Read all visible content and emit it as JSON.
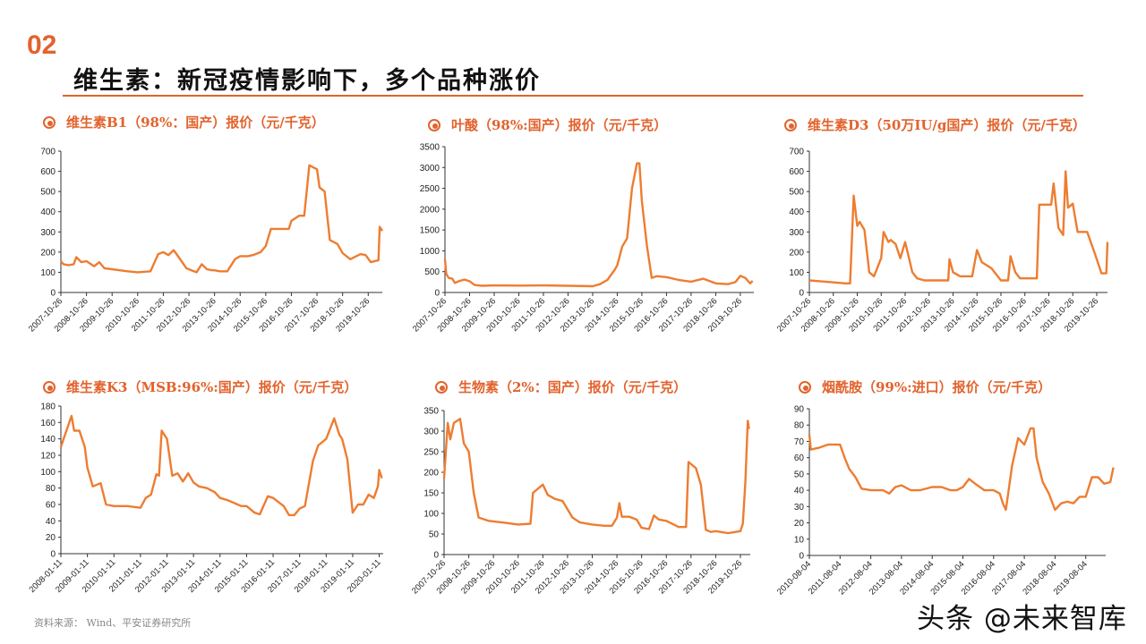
{
  "header": {
    "section_number": "02",
    "title": "维生素：新冠疫情影响下，多个品种涨价"
  },
  "footer": {
    "source": "资料来源： Wind、平安证券研究所",
    "watermark": "头条 @未来智库"
  },
  "colors": {
    "accent": "#e2632d",
    "line": "#ed7d31",
    "axis": "#333333"
  },
  "chart_data": [
    {
      "id": "b1",
      "type": "line",
      "title": "维生素B1（98%：国产）报价（元/千克）",
      "xlabel": "",
      "ylabel": "元/千克",
      "ylim": [
        0,
        700
      ],
      "yticks": [
        0,
        100,
        200,
        300,
        400,
        500,
        600,
        700
      ],
      "xticks": [
        "2007-10-26",
        "2008-10-26",
        "2009-10-26",
        "2010-10-26",
        "2011-10-26",
        "2012-10-26",
        "2013-10-26",
        "2014-10-26",
        "2015-10-26",
        "2016-10-26",
        "2017-10-26",
        "2018-10-26",
        "2019-10-26"
      ],
      "grid": false,
      "x": [
        0,
        0.1,
        0.3,
        0.5,
        0.6,
        0.8,
        1.0,
        1.3,
        1.5,
        1.7,
        2.0,
        2.3,
        2.6,
        3.0,
        3.5,
        3.8,
        4.0,
        4.2,
        4.4,
        4.6,
        4.9,
        5.1,
        5.3,
        5.5,
        5.7,
        5.9,
        6.0,
        6.2,
        6.5,
        6.8,
        7.0,
        7.3,
        7.5,
        7.8,
        8.0,
        8.2,
        8.6,
        8.9,
        9.0,
        9.3,
        9.5,
        9.7,
        10.0,
        10.1,
        10.3,
        10.5,
        10.8,
        11.0,
        11.3,
        11.7,
        11.9,
        12.1,
        12.4,
        12.45,
        12.55
      ],
      "values": [
        155,
        140,
        135,
        140,
        175,
        150,
        155,
        130,
        150,
        120,
        115,
        110,
        105,
        100,
        105,
        190,
        200,
        185,
        210,
        175,
        120,
        110,
        100,
        140,
        115,
        110,
        110,
        105,
        105,
        165,
        180,
        180,
        185,
        200,
        230,
        315,
        315,
        315,
        355,
        380,
        380,
        630,
        610,
        520,
        500,
        260,
        240,
        195,
        165,
        190,
        185,
        150,
        160,
        325,
        305
      ]
    },
    {
      "id": "folic_acid",
      "type": "line",
      "title": "叶酸（98%:国产）报价（元/千克）",
      "xlabel": "",
      "ylabel": "元/千克",
      "ylim": [
        0,
        3500
      ],
      "yticks": [
        0,
        500,
        1000,
        1500,
        2000,
        2500,
        3000,
        3500
      ],
      "xticks": [
        "2007-10-26",
        "2008-10-26",
        "2009-10-26",
        "2010-10-26",
        "2011-10-26",
        "2012-10-26",
        "2013-10-26",
        "2014-10-26",
        "2015-10-26",
        "2016-10-26",
        "2017-10-26",
        "2018-10-26",
        "2019-10-26"
      ],
      "grid": false,
      "x": [
        0,
        0.05,
        0.15,
        0.3,
        0.4,
        0.6,
        0.8,
        1.0,
        1.2,
        1.5,
        2.0,
        3.0,
        4.0,
        5.0,
        6.0,
        6.3,
        6.6,
        6.9,
        7.0,
        7.2,
        7.4,
        7.6,
        7.8,
        7.9,
        8.0,
        8.2,
        8.4,
        8.6,
        9.0,
        9.5,
        10.0,
        10.5,
        11.0,
        11.5,
        11.8,
        12.0,
        12.2,
        12.4,
        12.5
      ],
      "values": [
        800,
        450,
        350,
        330,
        230,
        280,
        310,
        270,
        180,
        160,
        170,
        165,
        170,
        160,
        150,
        200,
        300,
        550,
        650,
        1100,
        1300,
        2500,
        3100,
        3100,
        2200,
        1150,
        350,
        390,
        370,
        300,
        260,
        330,
        220,
        200,
        250,
        400,
        350,
        220,
        280
      ]
    },
    {
      "id": "d3",
      "type": "line",
      "title": "维生素D3（50万IU/g国产）报价（元/千克）",
      "xlabel": "",
      "ylabel": "元/千克",
      "ylim": [
        0,
        700
      ],
      "yticks": [
        0,
        100,
        200,
        300,
        400,
        500,
        600,
        700
      ],
      "xticks": [
        "2007-10-26",
        "2008-10-26",
        "2009-10-26",
        "2010-10-26",
        "2011-10-26",
        "2012-10-26",
        "2013-10-26",
        "2014-10-26",
        "2015-10-26",
        "2016-10-26",
        "2017-10-26",
        "2018-10-26",
        "2019-10-26"
      ],
      "grid": false,
      "x": [
        0,
        0.5,
        1.0,
        1.5,
        1.7,
        1.85,
        2.0,
        2.1,
        2.3,
        2.5,
        2.7,
        3.0,
        3.1,
        3.3,
        3.4,
        3.6,
        3.8,
        4.0,
        4.1,
        4.3,
        4.5,
        4.8,
        5.2,
        5.8,
        5.85,
        6.0,
        6.3,
        6.8,
        7.0,
        7.2,
        7.6,
        8.0,
        8.3,
        8.4,
        8.6,
        8.8,
        9.5,
        9.6,
        10.1,
        10.2,
        10.4,
        10.6,
        10.7,
        10.8,
        11.0,
        11.2,
        11.6,
        11.9,
        12.2,
        12.4,
        12.45
      ],
      "values": [
        60,
        55,
        50,
        45,
        45,
        480,
        330,
        350,
        310,
        100,
        80,
        170,
        300,
        250,
        260,
        240,
        170,
        250,
        200,
        100,
        70,
        60,
        60,
        60,
        165,
        100,
        80,
        80,
        210,
        150,
        120,
        60,
        60,
        180,
        100,
        70,
        70,
        435,
        435,
        540,
        320,
        285,
        600,
        420,
        440,
        300,
        300,
        200,
        95,
        95,
        250
      ]
    },
    {
      "id": "k3",
      "type": "line",
      "title": "维生素K3（MSB:96%:国产）报价（元/千克）",
      "xlabel": "",
      "ylabel": "元/千克",
      "ylim": [
        0,
        180
      ],
      "yticks": [
        0,
        20,
        40,
        60,
        80,
        100,
        120,
        140,
        160,
        180
      ],
      "xticks": [
        "2008-01-11",
        "2009-01-11",
        "2010-01-11",
        "2011-01-11",
        "2012-01-11",
        "2013-01-11",
        "2014-01-11",
        "2015-01-11",
        "2016-01-11",
        "2017-01-11",
        "2018-01-11",
        "2019-01-11",
        "2020-01-11"
      ],
      "grid": false,
      "x": [
        0,
        0.1,
        0.4,
        0.5,
        0.7,
        0.9,
        1.0,
        1.2,
        1.5,
        1.7,
        2.0,
        2.5,
        3.0,
        3.2,
        3.4,
        3.6,
        3.7,
        3.8,
        4.0,
        4.2,
        4.4,
        4.6,
        4.8,
        5.0,
        5.2,
        5.5,
        5.8,
        6.0,
        6.3,
        6.8,
        7.0,
        7.3,
        7.5,
        7.8,
        8.0,
        8.4,
        8.6,
        8.8,
        9.0,
        9.2,
        9.5,
        9.7,
        10.0,
        10.3,
        10.5,
        10.6,
        10.8,
        11.0,
        11.2,
        11.4,
        11.6,
        11.8,
        11.95,
        12.0,
        12.1
      ],
      "values": [
        130,
        140,
        168,
        150,
        150,
        130,
        105,
        82,
        86,
        60,
        58,
        58,
        56,
        68,
        72,
        97,
        95,
        150,
        140,
        95,
        98,
        88,
        98,
        87,
        82,
        80,
        75,
        68,
        65,
        58,
        58,
        50,
        48,
        70,
        68,
        58,
        47,
        47,
        55,
        58,
        113,
        132,
        140,
        165,
        145,
        140,
        115,
        50,
        60,
        60,
        72,
        68,
        82,
        102,
        92
      ]
    },
    {
      "id": "biotin",
      "type": "line",
      "title": "生物素（2%：国产）报价（元/千克）",
      "xlabel": "",
      "ylabel": "元/千克",
      "ylim": [
        0,
        350
      ],
      "yticks": [
        0,
        50,
        100,
        150,
        200,
        250,
        300,
        350
      ],
      "xticks": [
        "2007-10-26",
        "2008-10-26",
        "2009-10-26",
        "2010-10-26",
        "2011-10-26",
        "2012-10-26",
        "2013-10-26",
        "2014-10-26",
        "2015-10-26",
        "2016-10-26",
        "2017-10-26",
        "2018-10-26",
        "2019-10-26"
      ],
      "grid": false,
      "x": [
        0,
        0.15,
        0.25,
        0.4,
        0.65,
        0.8,
        1.0,
        1.2,
        1.4,
        1.8,
        2.5,
        3.0,
        3.5,
        3.6,
        4.0,
        4.2,
        4.5,
        4.8,
        5.2,
        5.5,
        6.0,
        6.5,
        6.8,
        7.0,
        7.1,
        7.2,
        7.5,
        7.8,
        8.0,
        8.3,
        8.5,
        8.7,
        9.0,
        9.5,
        9.8,
        9.9,
        10.2,
        10.4,
        10.6,
        10.8,
        11.0,
        11.5,
        12.0,
        12.1,
        12.2,
        12.3,
        12.35
      ],
      "values": [
        185,
        320,
        280,
        320,
        330,
        270,
        250,
        150,
        90,
        82,
        77,
        73,
        75,
        150,
        170,
        145,
        135,
        130,
        90,
        78,
        73,
        70,
        70,
        90,
        125,
        92,
        92,
        85,
        65,
        62,
        95,
        85,
        82,
        67,
        67,
        225,
        210,
        170,
        60,
        55,
        57,
        52,
        57,
        75,
        175,
        325,
        305
      ]
    },
    {
      "id": "niacinamide",
      "type": "line",
      "title": "烟酰胺（99%:进口）报价（元/千克）",
      "xlabel": "",
      "ylabel": "元/千克",
      "ylim": [
        0,
        90
      ],
      "yticks": [
        0,
        10,
        20,
        30,
        40,
        50,
        60,
        70,
        80,
        90
      ],
      "xticks": [
        "2010-08-04",
        "2011-08-04",
        "2012-08-04",
        "2013-08-04",
        "2014-08-04",
        "2015-08-04",
        "2016-08-04",
        "2017-08-04",
        "2018-08-04",
        "2019-08-04"
      ],
      "grid": false,
      "x": [
        0,
        0.05,
        0.3,
        0.6,
        1.0,
        1.15,
        1.3,
        1.5,
        1.7,
        2.0,
        2.4,
        2.6,
        2.8,
        3.0,
        3.3,
        3.6,
        4.0,
        4.3,
        4.6,
        4.8,
        5.0,
        5.2,
        5.4,
        5.7,
        6.0,
        6.2,
        6.3,
        6.4,
        6.6,
        6.8,
        7.0,
        7.2,
        7.3,
        7.4,
        7.6,
        7.8,
        8.0,
        8.2,
        8.4,
        8.6,
        8.8,
        9.0,
        9.2,
        9.4,
        9.6,
        9.8,
        9.9
      ],
      "values": [
        74,
        65,
        66,
        68,
        68,
        60,
        53,
        48,
        41,
        40,
        40,
        38,
        42,
        43,
        40,
        40,
        42,
        42,
        40,
        40,
        42,
        47,
        44,
        40,
        40,
        38,
        32,
        28,
        55,
        72,
        68,
        78,
        78,
        60,
        45,
        38,
        28,
        32,
        33,
        32,
        36,
        36,
        48,
        48,
        44,
        45,
        54
      ]
    }
  ]
}
